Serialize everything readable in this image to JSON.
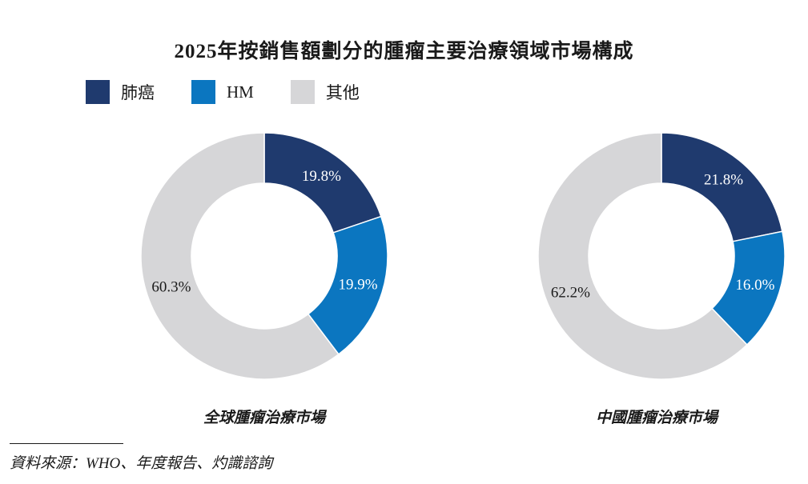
{
  "title": "2025年按銷售額劃分的腫瘤主要治療領域市場構成",
  "legend": [
    {
      "label": "肺癌",
      "color": "#1f3a6e"
    },
    {
      "label": "HM",
      "color": "#0b76c0"
    },
    {
      "label": "其他",
      "color": "#d6d6d8"
    }
  ],
  "chart_data": [
    {
      "type": "pie",
      "donut": true,
      "title": "全球腫瘤治療市場",
      "series": [
        {
          "name": "肺癌",
          "value": 19.8,
          "label": "19.8%"
        },
        {
          "name": "HM",
          "value": 19.9,
          "label": "19.9%"
        },
        {
          "name": "其他",
          "value": 60.3,
          "label": "60.3%"
        }
      ],
      "start_angle_deg": 0,
      "direction": "clockwise"
    },
    {
      "type": "pie",
      "donut": true,
      "title": "中國腫瘤治療市場",
      "series": [
        {
          "name": "肺癌",
          "value": 21.8,
          "label": "21.8%"
        },
        {
          "name": "HM",
          "value": 16.0,
          "label": "16.0%"
        },
        {
          "name": "其他",
          "value": 62.2,
          "label": "62.2%"
        }
      ],
      "start_angle_deg": 0,
      "direction": "clockwise"
    }
  ],
  "source_text": "資料來源：WHO、年度報告、灼識諮詢"
}
